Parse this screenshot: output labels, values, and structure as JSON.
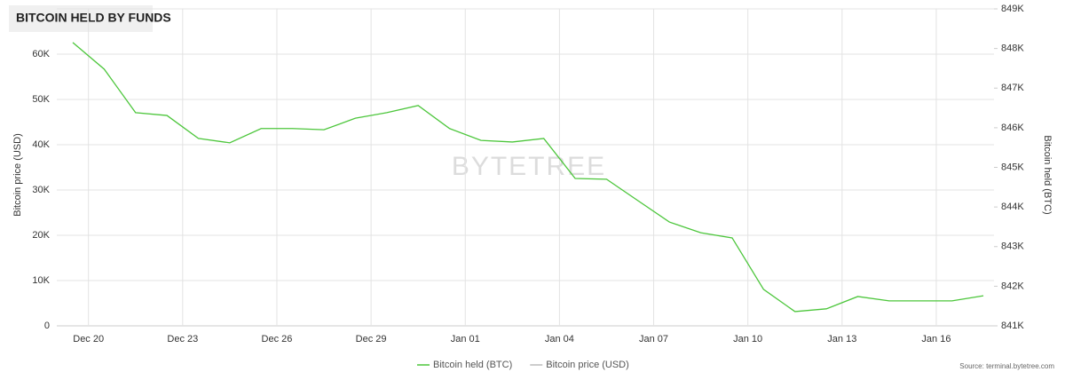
{
  "chart_data": {
    "type": "line",
    "title": "BITCOIN HELD BY FUNDS",
    "watermark": "BYTETREE",
    "source": "Source: terminal.bytetree.com",
    "ylabel": "Bitcoin price (USD)",
    "y2label": "Bitcoin held (BTC)",
    "categories": [
      "Dec 20",
      null,
      null,
      "Dec 23",
      null,
      null,
      "Dec 26",
      null,
      null,
      "Dec 29",
      null,
      null,
      "Jan 01",
      null,
      null,
      "Jan 04",
      null,
      null,
      "Jan 07",
      null,
      null,
      "Jan 10",
      null,
      null,
      "Jan 13",
      null,
      null,
      "Jan 16",
      null,
      null
    ],
    "series": [
      {
        "name": "Bitcoin held (BTC)",
        "color": "#4cc63b",
        "axis": "y2",
        "values": [
          848150,
          847480,
          846380,
          846310,
          845730,
          845620,
          845980,
          845980,
          845950,
          846240,
          846380,
          846560,
          845980,
          845680,
          845640,
          845730,
          844720,
          844700,
          844160,
          843620,
          843350,
          843220,
          841920,
          841360,
          841430,
          841740,
          841630,
          841630,
          841630,
          841760
        ]
      },
      {
        "name": "Bitcoin price (USD)",
        "color": "#bbbbbb",
        "values": [
          null,
          null,
          null,
          null,
          null,
          null,
          null,
          null,
          null,
          null,
          null,
          null,
          null,
          null,
          null,
          null,
          null,
          null,
          null,
          null,
          null,
          null,
          null,
          null,
          null,
          null,
          null,
          null,
          null,
          null
        ]
      }
    ],
    "ylim": [
      0,
      70000
    ],
    "yticks": [
      0,
      {
        "value": 10000,
        "label": "10K"
      },
      {
        "value": 20000,
        "label": "20K"
      },
      {
        "value": 30000,
        "label": "30K"
      },
      {
        "value": 40000,
        "label": "40K"
      },
      {
        "value": 50000,
        "label": "50K"
      },
      {
        "value": 60000,
        "label": "60K"
      }
    ],
    "y2lim": [
      841000,
      849000
    ],
    "y2ticks": [
      {
        "value": 841000,
        "label": "841K"
      },
      {
        "value": 842000,
        "label": "842K"
      },
      {
        "value": 843000,
        "label": "843K"
      },
      {
        "value": 844000,
        "label": "844K"
      },
      {
        "value": 845000,
        "label": "845K"
      },
      {
        "value": 846000,
        "label": "846K"
      },
      {
        "value": 847000,
        "label": "847K"
      },
      {
        "value": 848000,
        "label": "848K"
      },
      {
        "value": 849000,
        "label": "849K"
      }
    ],
    "grid": true,
    "legend": "bottom"
  }
}
